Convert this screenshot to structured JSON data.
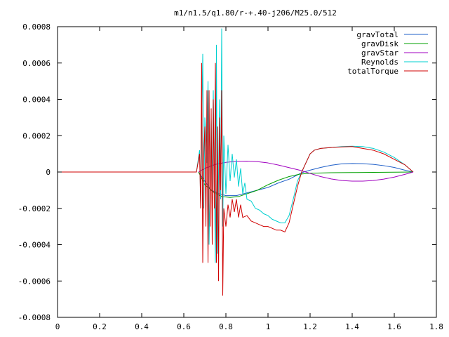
{
  "chart_data": {
    "type": "line",
    "title": "m1/n1.5/q1.80/r-+.40-j206/M25.0/512",
    "xlabel": "",
    "ylabel": "",
    "xlim": [
      0,
      1.8
    ],
    "ylim": [
      -0.0008,
      0.0008
    ],
    "grid": false,
    "legend_position": "top-right",
    "x_ticks": [
      {
        "value": 0,
        "label": "0"
      },
      {
        "value": 0.2,
        "label": "0.2"
      },
      {
        "value": 0.4,
        "label": "0.4"
      },
      {
        "value": 0.6,
        "label": "0.6"
      },
      {
        "value": 0.8,
        "label": "0.8"
      },
      {
        "value": 1.0,
        "label": "1"
      },
      {
        "value": 1.2,
        "label": "1.2"
      },
      {
        "value": 1.4,
        "label": "1.4"
      },
      {
        "value": 1.6,
        "label": "1.6"
      },
      {
        "value": 1.8,
        "label": "1.8"
      }
    ],
    "y_ticks": [
      {
        "value": 0.0008,
        "label": "0.0008"
      },
      {
        "value": 0.0006,
        "label": "0.0006"
      },
      {
        "value": 0.0004,
        "label": "0.0004"
      },
      {
        "value": 0.0002,
        "label": "0.0002"
      },
      {
        "value": 0,
        "label": "0"
      },
      {
        "value": -0.0002,
        "label": "-0.0002"
      },
      {
        "value": -0.0004,
        "label": "-0.0004"
      },
      {
        "value": -0.0006,
        "label": "-0.0006"
      },
      {
        "value": -0.0008,
        "label": "-0.0008"
      }
    ],
    "series": [
      {
        "name": "gravTotal",
        "color": "#1f5fc8",
        "x": [
          0.67,
          0.7,
          0.73,
          0.77,
          0.8,
          0.85,
          0.9,
          0.95,
          1.0,
          1.05,
          1.1,
          1.15,
          1.17,
          1.2,
          1.25,
          1.3,
          1.35,
          1.4,
          1.45,
          1.5,
          1.55,
          1.6,
          1.65,
          1.69
        ],
        "y": [
          0.0,
          -5e-05,
          -0.0001,
          -0.00012,
          -0.00013,
          -0.00013,
          -0.000115,
          -0.0001,
          -8.5e-05,
          -6e-05,
          -4e-05,
          -1e-05,
          0.0,
          1e-05,
          2.5e-05,
          3.7e-05,
          4.5e-05,
          4.7e-05,
          4.6e-05,
          4.2e-05,
          3.5e-05,
          2.5e-05,
          1e-05,
          0.0
        ]
      },
      {
        "name": "gravDisk",
        "color": "#00a000",
        "x": [
          0.67,
          0.7,
          0.74,
          0.78,
          0.82,
          0.86,
          0.9,
          0.95,
          1.0,
          1.05,
          1.1,
          1.15,
          1.2,
          1.3,
          1.4,
          1.5,
          1.6,
          1.69
        ],
        "y": [
          0.0,
          -7e-05,
          -0.00011,
          -0.000135,
          -0.00014,
          -0.000135,
          -0.00012,
          -0.0001,
          -7e-05,
          -4.5e-05,
          -2.5e-05,
          -1.2e-05,
          -7e-06,
          -4e-06,
          -3e-06,
          -2e-06,
          -1e-06,
          0.0
        ]
      },
      {
        "name": "gravStar",
        "color": "#a000c0",
        "x": [
          0.67,
          0.7,
          0.75,
          0.8,
          0.85,
          0.9,
          0.95,
          1.0,
          1.05,
          1.1,
          1.15,
          1.18,
          1.2,
          1.25,
          1.3,
          1.35,
          1.4,
          1.45,
          1.5,
          1.55,
          1.6,
          1.65,
          1.69
        ],
        "y": [
          0.0,
          2e-05,
          4.2e-05,
          5.3e-05,
          5.9e-05,
          6e-05,
          5.7e-05,
          5e-05,
          3.8e-05,
          2.4e-05,
          1e-05,
          0.0,
          -8e-06,
          -2.5e-05,
          -3.8e-05,
          -4.7e-05,
          -5e-05,
          -5e-05,
          -4.7e-05,
          -3.9e-05,
          -2.8e-05,
          -1.3e-05,
          0.0
        ]
      },
      {
        "name": "Reynolds",
        "color": "#00d0d0",
        "x": [
          0.0,
          0.66,
          0.675,
          0.68,
          0.69,
          0.695,
          0.7,
          0.71,
          0.715,
          0.72,
          0.73,
          0.735,
          0.74,
          0.75,
          0.755,
          0.76,
          0.77,
          0.775,
          0.78,
          0.785,
          0.79,
          0.8,
          0.81,
          0.82,
          0.83,
          0.84,
          0.85,
          0.86,
          0.87,
          0.88,
          0.89,
          0.9,
          0.92,
          0.94,
          0.96,
          0.98,
          1.0,
          1.02,
          1.04,
          1.06,
          1.08,
          1.1,
          1.12,
          1.14,
          1.16,
          1.18,
          1.2,
          1.22,
          1.25,
          1.3,
          1.35,
          1.4,
          1.45,
          1.5,
          1.55,
          1.6,
          1.65,
          1.69
        ],
        "y": [
          0.0,
          0.0,
          0.00012,
          -0.00018,
          0.00065,
          -0.0002,
          0.0003,
          5e-05,
          0.0005,
          -0.0004,
          0.0003,
          -0.0001,
          0.00045,
          -0.0005,
          0.0007,
          -0.00045,
          0.0004,
          -0.00015,
          0.00079,
          -0.0003,
          0.0002,
          -0.00012,
          0.00015,
          -5e-05,
          0.0001,
          -3e-05,
          7e-05,
          -8e-05,
          2e-05,
          -0.00012,
          -6e-05,
          -0.00015,
          -0.00016,
          -0.0002,
          -0.00021,
          -0.00023,
          -0.00024,
          -0.00026,
          -0.00027,
          -0.00028,
          -0.00028,
          -0.00024,
          -0.00015,
          -5e-05,
          0.0,
          5e-05,
          0.0001,
          0.00012,
          0.00013,
          0.000135,
          0.00014,
          0.000142,
          0.00014,
          0.00013,
          0.00011,
          8e-05,
          4e-05,
          0.0
        ]
      },
      {
        "name": "totalTorque",
        "color": "#d00000",
        "x": [
          0.0,
          0.66,
          0.675,
          0.68,
          0.685,
          0.69,
          0.695,
          0.7,
          0.705,
          0.71,
          0.715,
          0.72,
          0.725,
          0.73,
          0.735,
          0.74,
          0.745,
          0.75,
          0.755,
          0.76,
          0.765,
          0.77,
          0.775,
          0.78,
          0.785,
          0.79,
          0.8,
          0.81,
          0.82,
          0.83,
          0.84,
          0.85,
          0.86,
          0.87,
          0.88,
          0.9,
          0.92,
          0.94,
          0.96,
          0.98,
          1.0,
          1.02,
          1.04,
          1.06,
          1.08,
          1.1,
          1.12,
          1.14,
          1.16,
          1.18,
          1.2,
          1.22,
          1.25,
          1.3,
          1.35,
          1.4,
          1.45,
          1.5,
          1.55,
          1.6,
          1.65,
          1.69
        ],
        "y": [
          0.0,
          0.0,
          0.0001,
          -0.0002,
          0.0006,
          -0.0005,
          0.0001,
          0.00025,
          -0.0003,
          0.00045,
          -0.0005,
          0.00045,
          -0.0003,
          0.00035,
          -0.0004,
          0.0004,
          -0.0002,
          0.0006,
          -0.0005,
          0.00025,
          -0.0006,
          0.0003,
          -0.0001,
          0.00045,
          -0.00068,
          -0.0002,
          -0.0003,
          -0.00018,
          -0.00025,
          -0.00015,
          -0.00022,
          -0.00015,
          -0.00025,
          -0.00018,
          -0.00025,
          -0.00024,
          -0.00027,
          -0.00028,
          -0.00029,
          -0.0003,
          -0.0003,
          -0.00031,
          -0.00032,
          -0.00032,
          -0.00033,
          -0.00028,
          -0.00018,
          -8e-05,
          0.0,
          5e-05,
          0.0001,
          0.00012,
          0.00013,
          0.000135,
          0.000138,
          0.00014,
          0.00013,
          0.00012,
          0.0001,
          7e-05,
          4e-05,
          0.0
        ]
      }
    ]
  }
}
